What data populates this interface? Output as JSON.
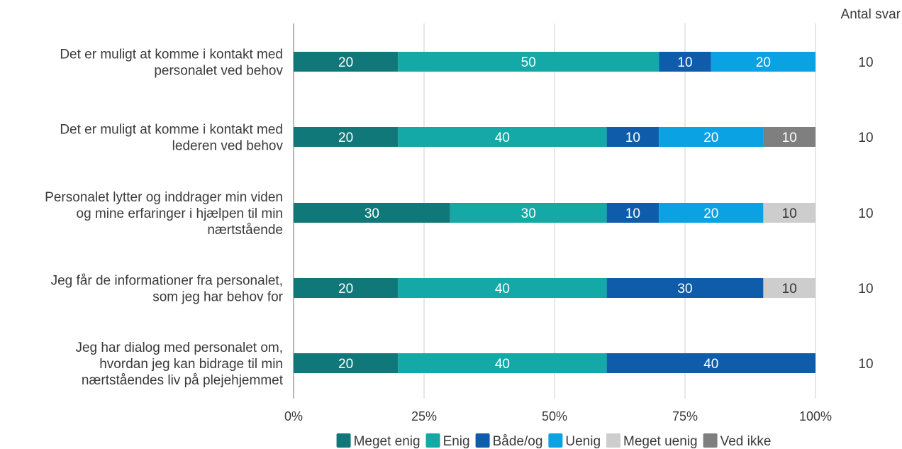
{
  "chart_data": {
    "type": "bar",
    "orientation": "horizontal",
    "stacked": true,
    "title": "",
    "xlabel": "",
    "ylabel": "",
    "xlim": [
      0,
      100
    ],
    "x_ticks": [
      0,
      25,
      50,
      75,
      100
    ],
    "x_tick_labels": [
      "0%",
      "25%",
      "50%",
      "75%",
      "100%"
    ],
    "grid": true,
    "legend_position": "bottom",
    "count_header": "Antal svar",
    "categories": [
      [
        "Det er muligt at komme i kontakt med",
        "personalet ved behov"
      ],
      [
        "Det er muligt at komme i kontakt med",
        "lederen ved behov"
      ],
      [
        "Personalet lytter og inddrager min viden",
        "og mine erfaringer i hjælpen til min",
        "nærtstående"
      ],
      [
        "Jeg får de informationer fra personalet,",
        "som jeg har behov for"
      ],
      [
        "Jeg har dialog med personalet om,",
        "hvordan jeg kan bidrage til min",
        "nærtståendes liv på plejehjemmet"
      ]
    ],
    "counts": [
      "10",
      "10",
      "10",
      "10",
      "10"
    ],
    "series": [
      {
        "name": "Meget enig",
        "color": "#11787a",
        "label_color": "#ffffff",
        "values": [
          20,
          20,
          30,
          20,
          20
        ]
      },
      {
        "name": "Enig",
        "color": "#14a8a6",
        "label_color": "#ffffff",
        "values": [
          50,
          40,
          30,
          40,
          40
        ]
      },
      {
        "name": "Både/og",
        "color": "#0f5cab",
        "label_color": "#ffffff",
        "values": [
          10,
          10,
          10,
          30,
          40
        ]
      },
      {
        "name": "Uenig",
        "color": "#0aa2e2",
        "label_color": "#ffffff",
        "values": [
          20,
          20,
          20,
          0,
          0
        ]
      },
      {
        "name": "Meget uenig",
        "color": "#cdcdcd",
        "label_color": "#333333",
        "values": [
          0,
          0,
          10,
          10,
          0
        ]
      },
      {
        "name": "Ved ikke",
        "color": "#7f7f7f",
        "label_color": "#ffffff",
        "values": [
          0,
          10,
          0,
          0,
          0
        ]
      }
    ]
  }
}
